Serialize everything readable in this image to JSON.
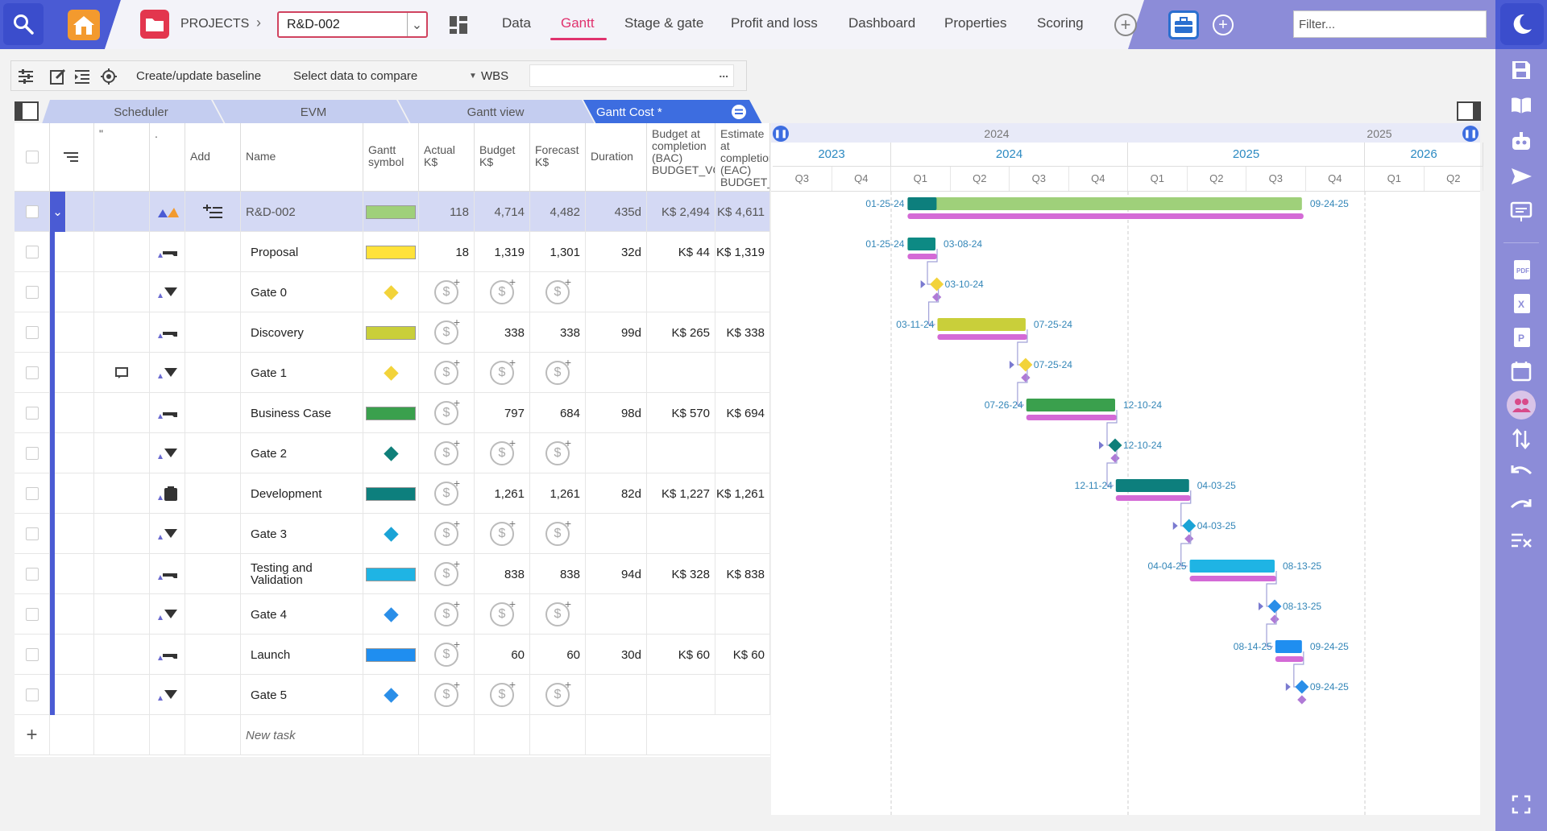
{
  "header": {
    "projects_label": "PROJECTS",
    "project_selected": "R&D-002",
    "tabs": [
      {
        "label": "Data",
        "active": false
      },
      {
        "label": "Gantt",
        "active": true
      },
      {
        "label": "Stage & gate",
        "active": false
      },
      {
        "label": "Profit and loss",
        "active": false
      },
      {
        "label": "Dashboard",
        "active": false
      },
      {
        "label": "Properties",
        "active": false
      },
      {
        "label": "Scoring",
        "active": false
      }
    ],
    "filter_placeholder": "Filter..."
  },
  "toolbar": {
    "baseline_label": "Create/update baseline",
    "compare_label": "Select data to compare",
    "wbs_label": "WBS",
    "more_label": "..."
  },
  "view_tabs": [
    "Scheduler",
    "EVM",
    "Gantt view",
    "Gantt Cost *"
  ],
  "columns": {
    "add": "Add",
    "name": "Name",
    "symbol": "Gantt symbol",
    "actual": "Actual K$",
    "budget": "Budget K$",
    "forecast": "Forecast K$",
    "duration": "Duration",
    "bac": "Budget at completion (BAC) BUDGET_VO",
    "eac": "Estimate at completion (EAC) BUDGET_VO"
  },
  "rows": [
    {
      "name": "R&D-002",
      "color": "#9fd07a",
      "shape": "bar",
      "actual": "118",
      "budget": "4,714",
      "forecast": "4,482",
      "duration": "435d",
      "bac": "K$ 2,494",
      "eac": "K$ 4,611"
    },
    {
      "name": "Proposal",
      "color": "#ffe23a",
      "shape": "bar",
      "actual": "18",
      "budget": "1,319",
      "forecast": "1,301",
      "duration": "32d",
      "bac": "K$ 44",
      "eac": "K$ 1,319"
    },
    {
      "name": "Gate 0",
      "color": "#f2d33a",
      "shape": "diamond",
      "actual": "",
      "budget": "",
      "forecast": "",
      "duration": "",
      "bac": "",
      "eac": ""
    },
    {
      "name": "Discovery",
      "color": "#c9cf3a",
      "shape": "bar",
      "actual": "",
      "budget": "338",
      "forecast": "338",
      "duration": "99d",
      "bac": "K$ 265",
      "eac": "K$ 338"
    },
    {
      "name": "Gate 1",
      "color": "#f2d33a",
      "shape": "diamond",
      "actual": "",
      "budget": "",
      "forecast": "",
      "duration": "",
      "bac": "",
      "eac": ""
    },
    {
      "name": "Business Case",
      "color": "#3aa04d",
      "shape": "bar",
      "actual": "",
      "budget": "797",
      "forecast": "684",
      "duration": "98d",
      "bac": "K$ 570",
      "eac": "K$ 694"
    },
    {
      "name": "Gate 2",
      "color": "#0f7f79",
      "shape": "diamond",
      "actual": "",
      "budget": "",
      "forecast": "",
      "duration": "",
      "bac": "",
      "eac": ""
    },
    {
      "name": "Development",
      "color": "#0d7f7d",
      "shape": "bar",
      "actual": "",
      "budget": "1,261",
      "forecast": "1,261",
      "duration": "82d",
      "bac": "K$ 1,227",
      "eac": "K$ 1,261"
    },
    {
      "name": "Gate 3",
      "color": "#1aa3d6",
      "shape": "diamond",
      "actual": "",
      "budget": "",
      "forecast": "",
      "duration": "",
      "bac": "",
      "eac": ""
    },
    {
      "name": "Testing and Validation",
      "color": "#1fb4e4",
      "shape": "bar",
      "actual": "",
      "budget": "838",
      "forecast": "838",
      "duration": "94d",
      "bac": "K$ 328",
      "eac": "K$ 838"
    },
    {
      "name": "Gate 4",
      "color": "#2a8ee8",
      "shape": "diamond",
      "actual": "",
      "budget": "",
      "forecast": "",
      "duration": "",
      "bac": "",
      "eac": ""
    },
    {
      "name": "Launch",
      "color": "#1f8ef0",
      "shape": "bar",
      "actual": "",
      "budget": "60",
      "forecast": "60",
      "duration": "30d",
      "bac": "K$ 60",
      "eac": "K$ 60"
    },
    {
      "name": "Gate 5",
      "color": "#2a8ee8",
      "shape": "diamond",
      "actual": "",
      "budget": "",
      "forecast": "",
      "duration": "",
      "bac": "",
      "eac": ""
    }
  ],
  "new_task_placeholder": "New task",
  "gantt": {
    "top_years": [
      "2024",
      "2025"
    ],
    "years": [
      "2023",
      "2024",
      "2025",
      "2026"
    ],
    "quarters": [
      "Q3",
      "Q4",
      "Q1",
      "Q2",
      "Q3",
      "Q4",
      "Q1",
      "Q2",
      "Q3",
      "Q4",
      "Q1",
      "Q2"
    ],
    "tasks": [
      {
        "start": "01-25-24",
        "end": "09-24-25"
      },
      {
        "start": "01-25-24",
        "end": "03-08-24"
      },
      {
        "start": "",
        "end": "03-10-24"
      },
      {
        "start": "03-11-24",
        "end": "07-25-24"
      },
      {
        "start": "",
        "end": "07-25-24"
      },
      {
        "start": "07-26-24",
        "end": "12-10-24"
      },
      {
        "start": "",
        "end": "12-10-24"
      },
      {
        "start": "12-11-24",
        "end": "04-03-25"
      },
      {
        "start": "",
        "end": "04-03-25"
      },
      {
        "start": "04-04-25",
        "end": "08-13-25"
      },
      {
        "start": "",
        "end": "08-13-25"
      },
      {
        "start": "08-14-25",
        "end": "09-24-25"
      },
      {
        "start": "",
        "end": "09-24-25"
      }
    ]
  }
}
